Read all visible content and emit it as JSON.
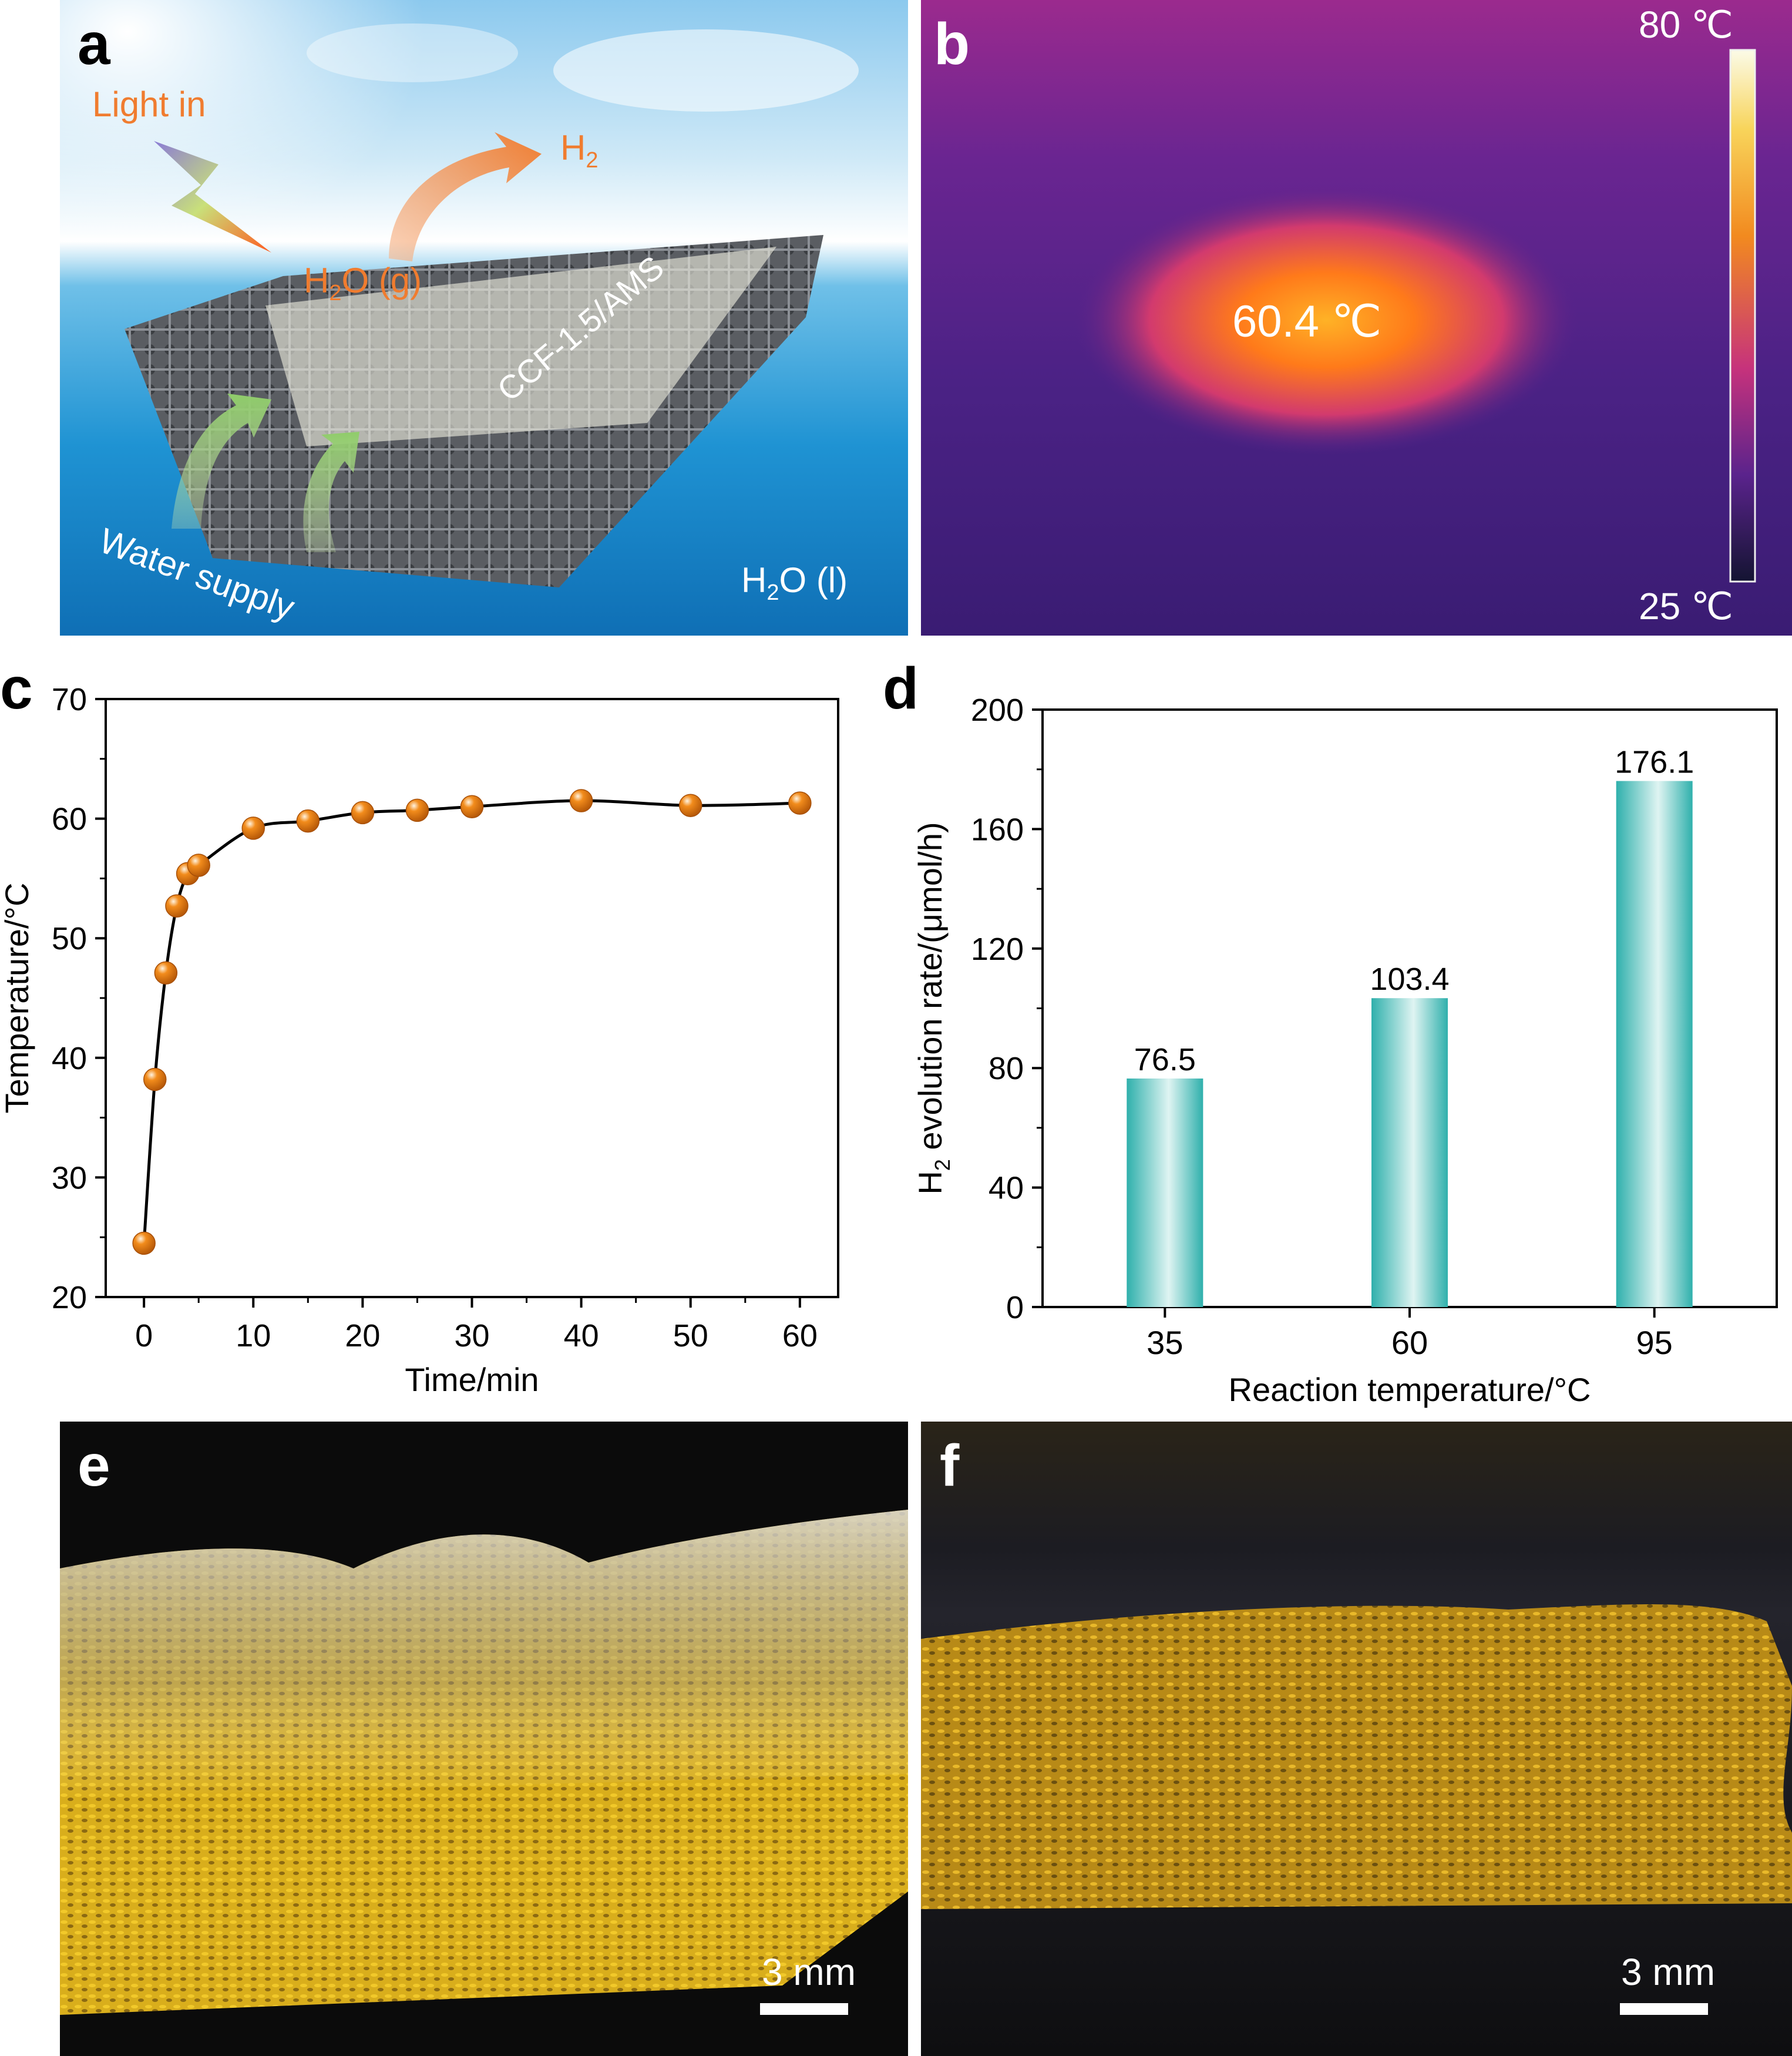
{
  "panels": {
    "a": {
      "label": "a",
      "light_in": "Light in",
      "h2_product": "H",
      "h2_sub": "2",
      "vapor": "H",
      "vapor_sub": "2",
      "vapor_rest": "O (g)",
      "material": "CCF-1.5/AMS",
      "water_supply": "Water supply",
      "liquid": "H",
      "liquid_sub": "2",
      "liquid_rest": "O (l)"
    },
    "b": {
      "label": "b",
      "scale_max": "80 ℃",
      "scale_min": "25 ℃",
      "hotspot": "60.4 ℃"
    },
    "e": {
      "label": "e",
      "scalebar": "3 mm"
    },
    "f": {
      "label": "f",
      "scalebar": "3 mm"
    }
  },
  "chart_data": [
    {
      "panel": "c",
      "type": "line",
      "xlabel": "Time/min",
      "ylabel": "Temperature/°C",
      "xlim": [
        -3.5,
        63.5
      ],
      "ylim": [
        20,
        70
      ],
      "xticks": [
        0,
        10,
        20,
        30,
        40,
        50,
        60
      ],
      "yticks": [
        20,
        30,
        40,
        50,
        60,
        70
      ],
      "series": [
        {
          "x": [
            0,
            1,
            2,
            3,
            4,
            5,
            10,
            15,
            20,
            25,
            30,
            40,
            50,
            60
          ],
          "y": [
            24.5,
            38.2,
            47.1,
            52.7,
            55.4,
            56.1,
            59.2,
            59.8,
            60.5,
            60.7,
            61.0,
            61.5,
            61.1,
            61.3
          ]
        }
      ],
      "colors": {
        "marker": "#f28c1c",
        "line": "#000000"
      }
    },
    {
      "panel": "d",
      "type": "bar",
      "xlabel": "Reaction temperature/°C",
      "ylabel_main": "H",
      "ylabel_sub": "2",
      "ylabel_rest": " evolution rate/(μmol/h)",
      "categories": [
        "35",
        "60",
        "95"
      ],
      "values": [
        76.5,
        103.4,
        176.1
      ],
      "data_labels": [
        "76.5",
        "103.4",
        "176.1"
      ],
      "ylim": [
        0,
        200
      ],
      "yticks": [
        0,
        40,
        80,
        120,
        160,
        200
      ],
      "colors": {
        "bar_edge": "#2fb0ac",
        "bar_center": "#dff4f2"
      }
    }
  ]
}
